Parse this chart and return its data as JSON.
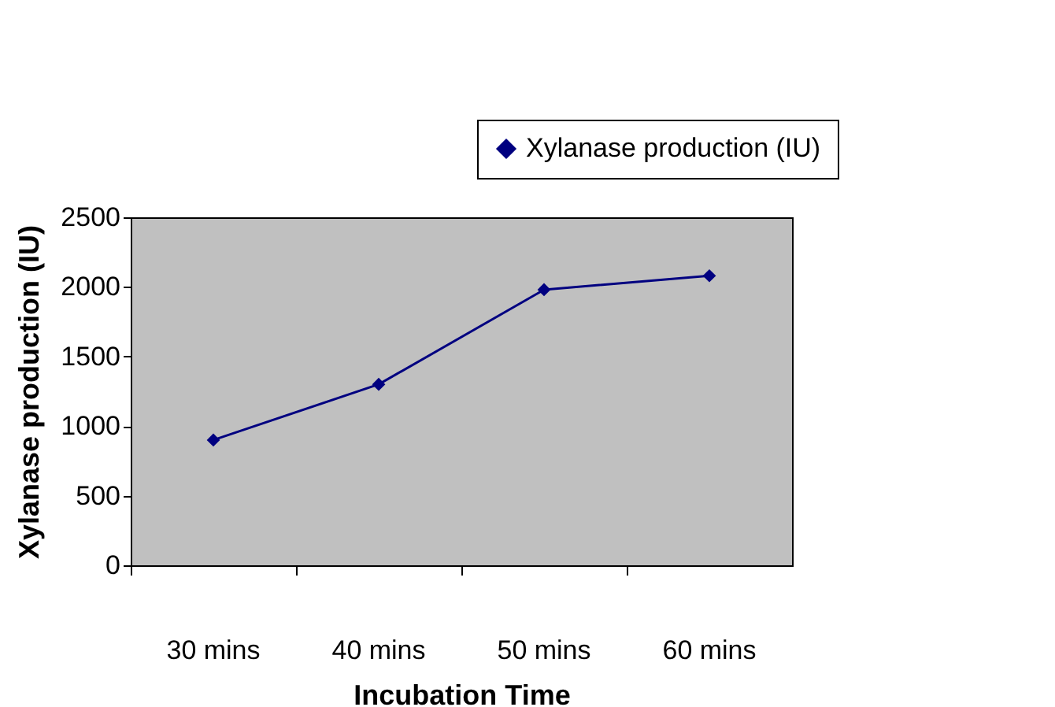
{
  "chart_data": {
    "type": "line",
    "xlabel": "Incubation Time",
    "ylabel": "Xylanase production (IU)",
    "categories": [
      "30 mins",
      "40 mins",
      "50 mins",
      "60 mins"
    ],
    "series": [
      {
        "name": "Xylanase production (IU)",
        "color": "#000080",
        "values": [
          900,
          1300,
          1980,
          2080
        ]
      }
    ],
    "ylim": [
      0,
      2500
    ],
    "yticks": [
      0,
      500,
      1000,
      1500,
      2000,
      2500
    ],
    "grid": false,
    "legend": "top right",
    "marker": "diamond",
    "line_style": "solid"
  }
}
